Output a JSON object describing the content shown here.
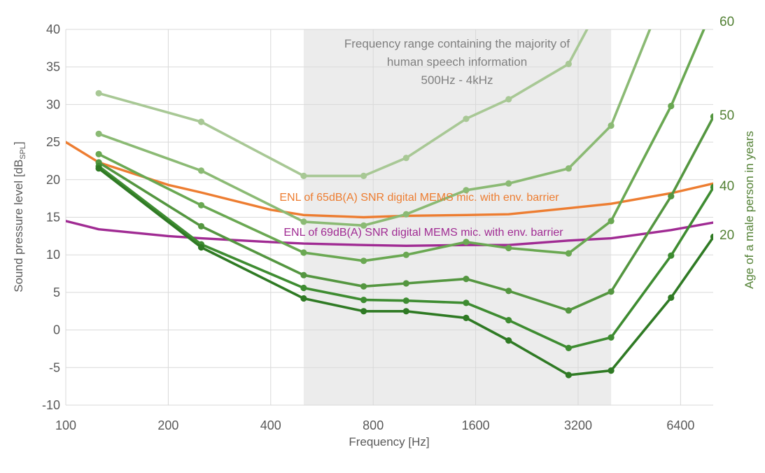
{
  "chart_data": {
    "type": "line",
    "annotation": {
      "lines": [
        "Frequency range containing the majority of",
        "human speech information",
        "500Hz - 4kHz"
      ],
      "color": "#7f7f7f"
    },
    "x_axis": {
      "label": "Frequency [Hz]",
      "scale": "log2",
      "ticks": [
        100,
        200,
        400,
        800,
        1600,
        3200,
        6400
      ],
      "min": 100,
      "max": 8000
    },
    "y_axis": {
      "label_pre": "Sound pressure level [dB",
      "label_sub": "SPL",
      "label_post": "]",
      "ticks": [
        40,
        35,
        30,
        25,
        20,
        15,
        10,
        5,
        0,
        -5,
        -10
      ],
      "min": -10,
      "max": 40
    },
    "right_axis": {
      "label": "Age of a male person in years",
      "color": "#538135"
    },
    "speech_band": {
      "from_hz": 500,
      "to_hz": 4000,
      "color": "#ececec"
    },
    "colors": {
      "grid": "#d9d9d9",
      "tick_text": "#595959"
    },
    "age_series": [
      {
        "age_label": "",
        "color": "#a8c895",
        "points": [
          [
            125,
            31.5
          ],
          [
            250,
            27.7
          ],
          [
            500,
            20.5
          ],
          [
            750,
            20.5
          ],
          [
            1000,
            22.9
          ],
          [
            1500,
            28.1
          ],
          [
            2000,
            30.7
          ],
          [
            3000,
            35.4
          ],
          [
            4000,
            46
          ]
        ]
      },
      {
        "age_label": "",
        "color": "#8bba74",
        "points": [
          [
            125,
            26.1
          ],
          [
            250,
            21.2
          ],
          [
            500,
            14.4
          ],
          [
            750,
            13.9
          ],
          [
            1000,
            15.4
          ],
          [
            1500,
            18.6
          ],
          [
            2000,
            19.5
          ],
          [
            3000,
            21.5
          ],
          [
            4000,
            27.2
          ],
          [
            6000,
            47
          ]
        ]
      },
      {
        "age_label": "60",
        "color": "#6aa852",
        "points": [
          [
            125,
            23.4
          ],
          [
            250,
            16.6
          ],
          [
            500,
            10.3
          ],
          [
            750,
            9.2
          ],
          [
            1000,
            10.0
          ],
          [
            1500,
            11.7
          ],
          [
            2000,
            10.9
          ],
          [
            3000,
            10.2
          ],
          [
            4000,
            14.5
          ],
          [
            6000,
            29.8
          ],
          [
            8000,
            43
          ]
        ]
      },
      {
        "age_label": "50",
        "color": "#549640",
        "points": [
          [
            125,
            22.3
          ],
          [
            250,
            13.8
          ],
          [
            500,
            7.3
          ],
          [
            750,
            5.8
          ],
          [
            1000,
            6.2
          ],
          [
            1500,
            6.8
          ],
          [
            2000,
            5.2
          ],
          [
            3000,
            2.6
          ],
          [
            4000,
            5.1
          ],
          [
            6000,
            17.8
          ],
          [
            8000,
            28.4
          ]
        ]
      },
      {
        "age_label": "40",
        "color": "#3e8c31",
        "points": [
          [
            125,
            21.8
          ],
          [
            250,
            11.4
          ],
          [
            500,
            5.6
          ],
          [
            750,
            4.0
          ],
          [
            1000,
            3.9
          ],
          [
            1500,
            3.6
          ],
          [
            2000,
            1.3
          ],
          [
            3000,
            -2.4
          ],
          [
            4000,
            -1.0
          ],
          [
            6000,
            9.9
          ],
          [
            8000,
            19.0
          ]
        ]
      },
      {
        "age_label": "20",
        "color": "#2f7a24",
        "points": [
          [
            125,
            21.5
          ],
          [
            250,
            11.0
          ],
          [
            500,
            4.2
          ],
          [
            750,
            2.5
          ],
          [
            1000,
            2.5
          ],
          [
            1500,
            1.6
          ],
          [
            2000,
            -1.4
          ],
          [
            3000,
            -6.0
          ],
          [
            4000,
            -5.4
          ],
          [
            6000,
            4.3
          ],
          [
            8000,
            12.4
          ]
        ]
      }
    ],
    "mic_series": [
      {
        "label": "ENL of 65dB(A) SNR digital MEMS mic. with env. barrier",
        "color": "#ED7D31",
        "points": [
          [
            100,
            25.0
          ],
          [
            125,
            22.3
          ],
          [
            200,
            19.3
          ],
          [
            250,
            18.3
          ],
          [
            400,
            16.0
          ],
          [
            500,
            15.3
          ],
          [
            750,
            15.0
          ],
          [
            1000,
            15.2
          ],
          [
            1500,
            15.3
          ],
          [
            2000,
            15.4
          ],
          [
            3000,
            16.2
          ],
          [
            4000,
            16.8
          ],
          [
            6000,
            18.2
          ],
          [
            8000,
            19.5
          ]
        ]
      },
      {
        "label": "ENL of 69dB(A) SNR digital MEMS mic. with env. barrier",
        "color": "#A02B93",
        "points": [
          [
            100,
            14.5
          ],
          [
            125,
            13.4
          ],
          [
            200,
            12.5
          ],
          [
            250,
            12.2
          ],
          [
            400,
            11.7
          ],
          [
            500,
            11.5
          ],
          [
            750,
            11.3
          ],
          [
            1000,
            11.2
          ],
          [
            1500,
            11.3
          ],
          [
            2000,
            11.3
          ],
          [
            3000,
            11.9
          ],
          [
            4000,
            12.2
          ],
          [
            6000,
            13.3
          ],
          [
            8000,
            14.3
          ]
        ]
      }
    ]
  }
}
